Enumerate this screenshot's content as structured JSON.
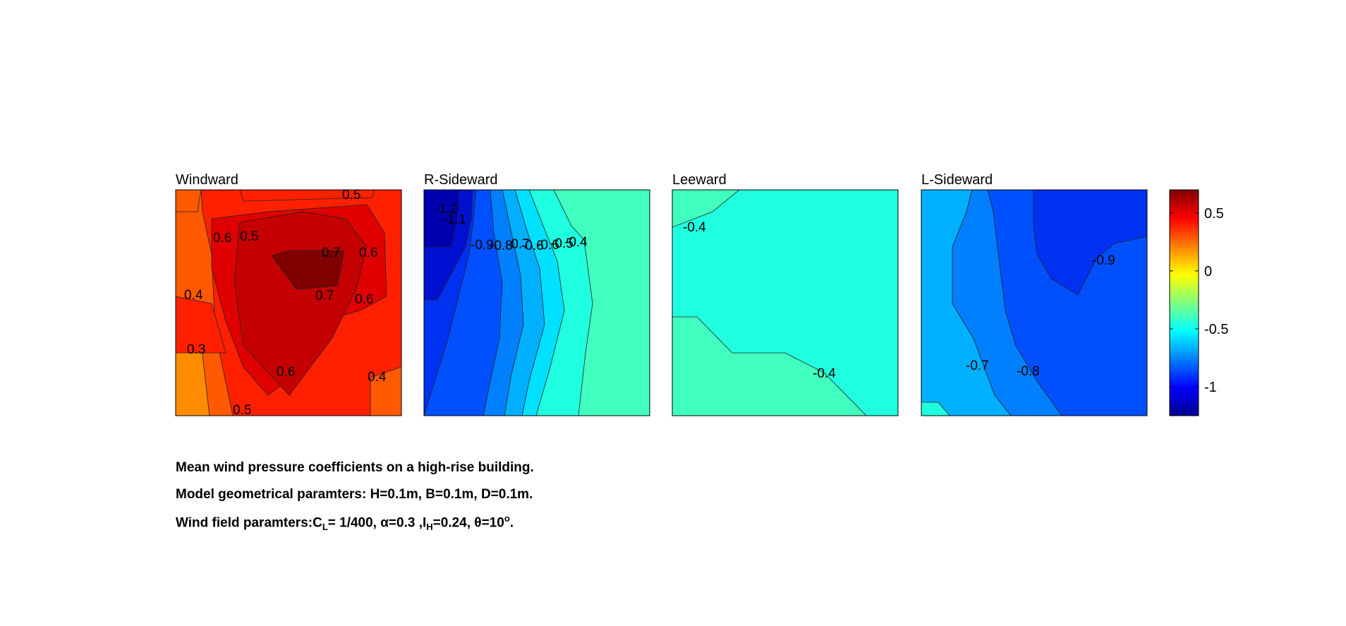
{
  "chart_data": [
    {
      "type": "contour",
      "title": "Windward",
      "levels": [
        0.3,
        0.4,
        0.5,
        0.6,
        0.7
      ],
      "contour_labels": [
        "0.5",
        "0.6",
        "0.5",
        "0.6",
        "0.7",
        "0.6",
        "0.4",
        "0.7",
        "0.6",
        "0.3",
        "0.6",
        "0.4",
        "0.5"
      ]
    },
    {
      "type": "contour",
      "title": "R-Sideward",
      "levels": [
        -1.2,
        -1.1,
        -1.0,
        -0.9,
        -0.8,
        -0.7,
        -0.6,
        -0.5,
        -0.4
      ],
      "contour_labels": [
        "-1.2",
        "-1.1",
        "-0.9",
        "-0.8",
        "-0.7",
        "-0.6",
        "-0.6",
        "-0.5",
        "-0.4"
      ]
    },
    {
      "type": "contour",
      "title": "Leeward",
      "levels": [
        -0.4
      ],
      "contour_labels": [
        "-0.4",
        "-0.4"
      ]
    },
    {
      "type": "contour",
      "title": "L-Sideward",
      "levels": [
        -0.7,
        -0.8,
        -0.9
      ],
      "contour_labels": [
        "-0.7",
        "-0.8",
        "-0.9"
      ]
    }
  ],
  "colorbar": {
    "colormap": "jet",
    "range": [
      -1.25,
      0.7
    ],
    "ticks": [
      0.5,
      0,
      -0.5,
      -1
    ],
    "tick_labels": [
      "0.5",
      "0",
      "-0.5",
      "-1"
    ]
  },
  "captions": {
    "line1": "Mean wind pressure coefficients on a high-rise building.",
    "line2": "Model geometrical paramters: H=0.1m, B=0.1m, D=0.1m.",
    "line3_a": "Wind field paramters:C",
    "line3_sub1": "L",
    "line3_b": "= 1/400, α=0.3 ,I",
    "line3_sub2": "H",
    "line3_c": "=0.24, θ=10",
    "line3_sup": "o",
    "line3_d": "."
  }
}
